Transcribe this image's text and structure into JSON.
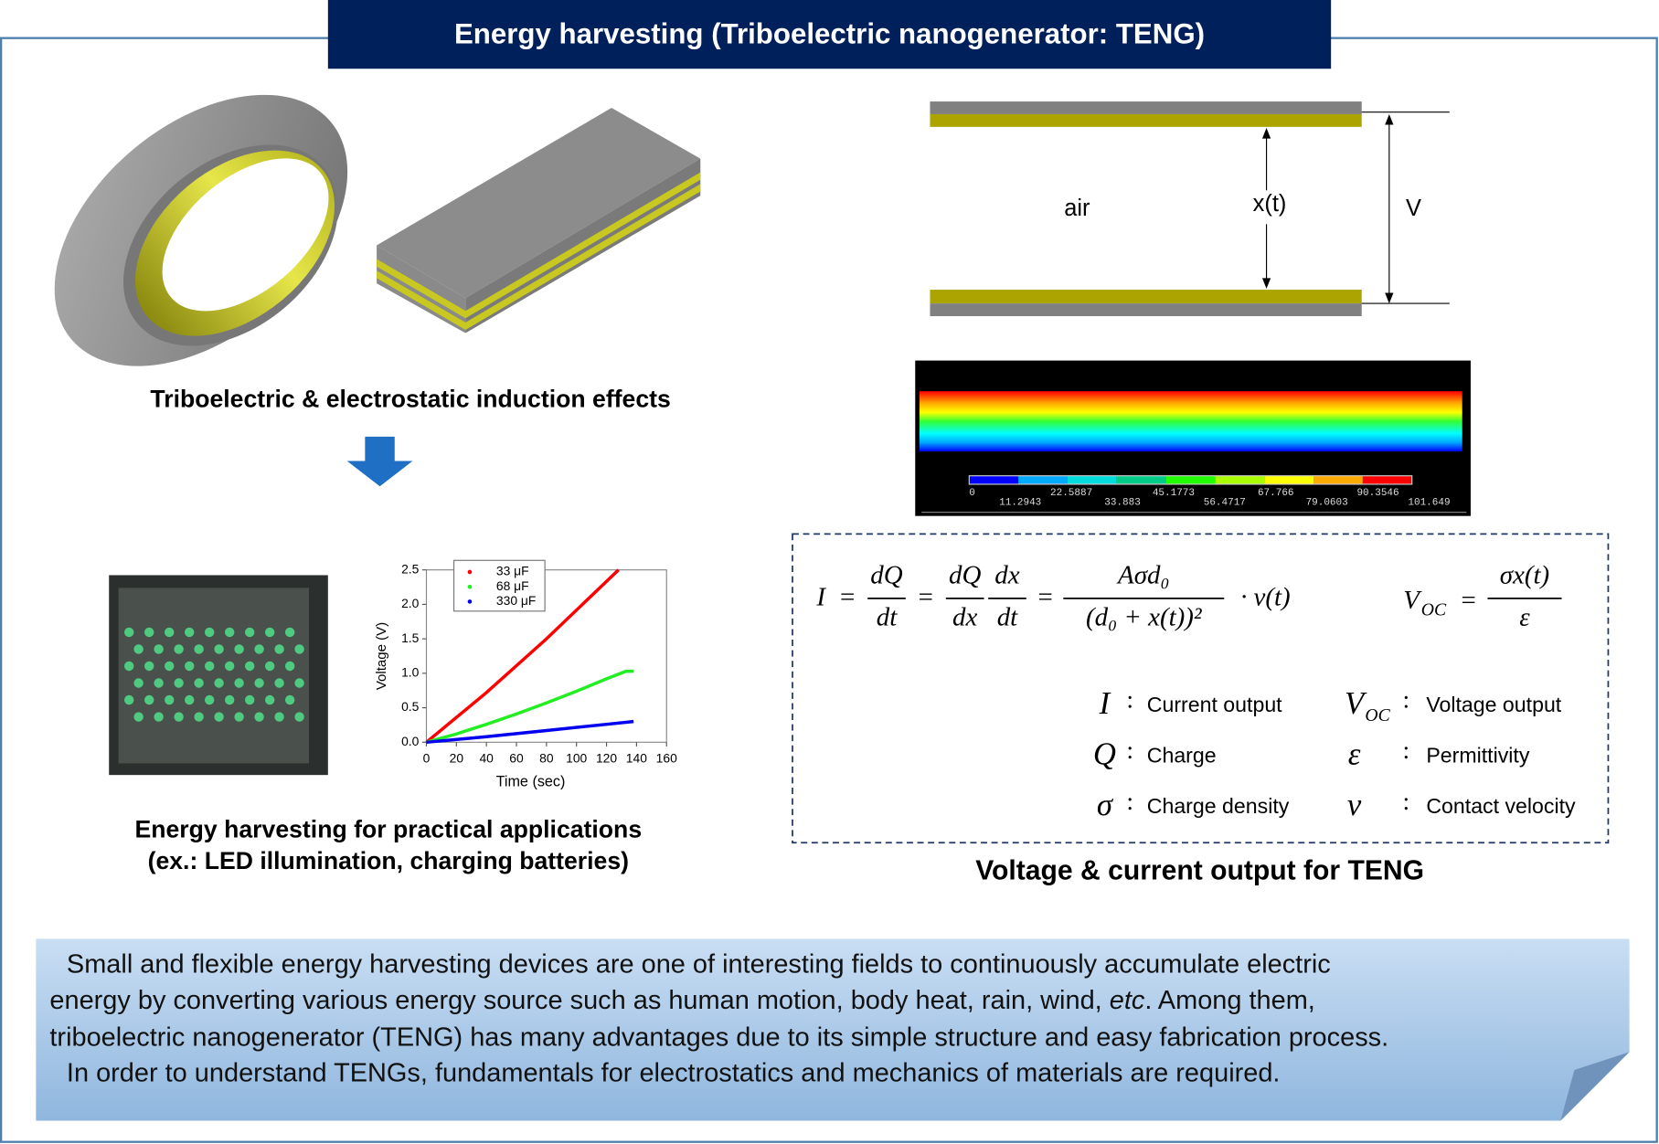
{
  "title": "Energy harvesting (Triboelectric nanogenerator: TENG)",
  "left": {
    "caption_top": "Triboelectric & electrostatic induction effects",
    "caption_bottom": [
      "Energy harvesting for practical applications",
      "(ex.: LED illumination, charging batteries)"
    ]
  },
  "chart": {
    "type": "line",
    "xlabel": "Time (sec)",
    "ylabel": "Voltage (V)",
    "xlim": [
      0,
      160
    ],
    "ylim": [
      0,
      2.5
    ],
    "xticks": [
      0,
      20,
      40,
      60,
      80,
      100,
      120,
      140,
      160
    ],
    "yticks": [
      {
        "value": 0,
        "label": "0.0"
      },
      {
        "value": 0.5,
        "label": "0.5"
      },
      {
        "value": 1,
        "label": "1.0"
      },
      {
        "value": 1.5,
        "label": "1.5"
      },
      {
        "value": 2,
        "label": "2.0"
      },
      {
        "value": 2.5,
        "label": "2.5"
      }
    ],
    "series": [
      {
        "name": "33 μF",
        "color": "#ff0000",
        "x": [
          0,
          40,
          80,
          128
        ],
        "values": [
          0,
          0.72,
          1.5,
          2.5
        ]
      },
      {
        "name": "68 μF",
        "color": "#22ee22",
        "x": [
          0,
          20,
          40,
          60,
          80,
          100,
          120,
          133,
          138
        ],
        "values": [
          0,
          0.12,
          0.26,
          0.41,
          0.57,
          0.74,
          0.92,
          1.03,
          1.03
        ]
      },
      {
        "name": "330 μF",
        "color": "#0000ee",
        "x": [
          0,
          40,
          80,
          120,
          138
        ],
        "values": [
          0,
          0.08,
          0.17,
          0.26,
          0.3
        ]
      }
    ]
  },
  "plates": {
    "air": "air",
    "gap": "x(t)",
    "voltage": "V"
  },
  "colorbar": {
    "labels": [
      "0",
      "11.2943",
      "22.5887",
      "33.883",
      "45.1773",
      "56.4717",
      "67.766",
      "79.0603",
      "90.3546",
      "101.649"
    ]
  },
  "equations": {
    "eq": "=",
    "colon": ":",
    "current": {
      "lhs": "I",
      "fractions": [
        {
          "num": "dQ",
          "den": "dt"
        },
        {
          "num": "dQ",
          "den": "dx"
        },
        {
          "num": "dx",
          "den": "dt"
        },
        {
          "num": "Aσd₀",
          "den": "(d₀ + x(t))²"
        }
      ],
      "tail": "· v(t)"
    },
    "voltage": {
      "lhs": "V",
      "lhs_sub": "OC",
      "num": "σx(t)",
      "den": "ε"
    },
    "legend": [
      {
        "symbol": "I",
        "text": "Current output"
      },
      {
        "symbol": "V",
        "sub": "OC",
        "text": "Voltage output"
      },
      {
        "symbol": "Q",
        "text": "Charge"
      },
      {
        "symbol": "ε",
        "text": "Permittivity"
      },
      {
        "symbol": "σ",
        "text": "Charge density"
      },
      {
        "symbol": "v",
        "text": "Contact velocity"
      }
    ]
  },
  "caption_right": "Voltage & current output for TENG",
  "paragraph": {
    "line1": "Small and flexible energy harvesting devices are one of interesting fields to continuously accumulate electric",
    "line2": [
      "energy by converting various energy source such as human motion, body heat, rain, wind, ",
      "etc",
      ". Among them,"
    ],
    "line3": "triboelectric nanogenerator (TENG) has many advantages due to its simple structure and easy fabrication process.",
    "line4": "In order to understand TENGs, fundamentals for electrostatics and mechanics of materials are required."
  }
}
